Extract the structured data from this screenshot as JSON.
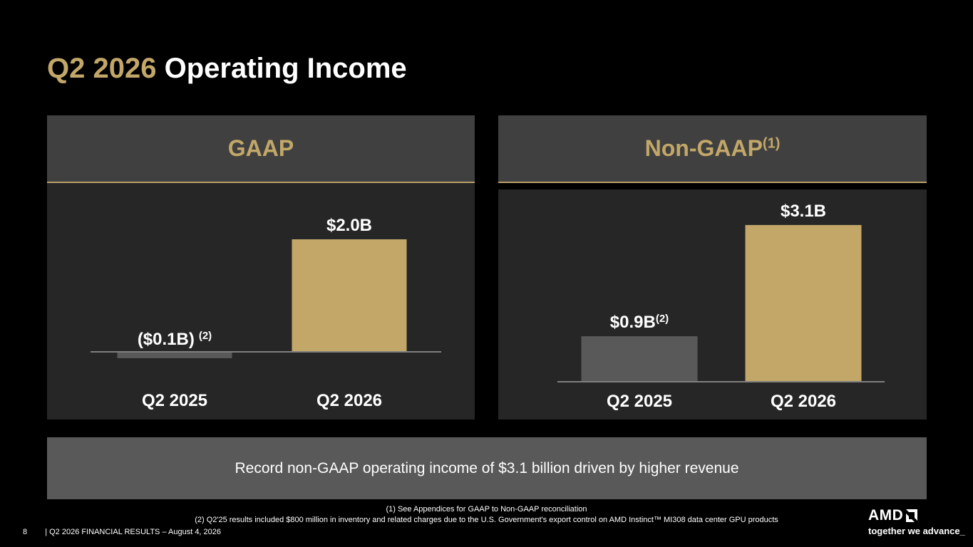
{
  "title": {
    "highlight": "Q2 2026",
    "main": "Operating Income"
  },
  "panels": {
    "gaap": {
      "header": "GAAP"
    },
    "nongaap": {
      "header": "Non-GAAP",
      "header_sup": "(1)"
    }
  },
  "chart_data": [
    {
      "type": "bar",
      "title": "GAAP",
      "categories": [
        "Q2 2025",
        "Q2 2026"
      ],
      "values": [
        -0.1,
        2.0
      ],
      "unit": "$B",
      "data_labels": [
        {
          "text": "($0.1B)",
          "sup": "(2)"
        },
        {
          "text": "$2.0B",
          "sup": ""
        }
      ],
      "colors": [
        "#595959",
        "#c2a768"
      ],
      "ylim": [
        -0.1,
        2.0
      ]
    },
    {
      "type": "bar",
      "title": "Non-GAAP",
      "categories": [
        "Q2 2025",
        "Q2 2026"
      ],
      "values": [
        0.9,
        3.1
      ],
      "unit": "$B",
      "data_labels": [
        {
          "text": "$0.9B",
          "sup": "(2)"
        },
        {
          "text": "$3.1B",
          "sup": ""
        }
      ],
      "colors": [
        "#595959",
        "#c2a768"
      ],
      "ylim": [
        0,
        3.1
      ]
    }
  ],
  "summary": "Record non-GAAP operating income of $3.1 billion driven by higher revenue",
  "footnotes": [
    "(1) See Appendices for GAAP to Non-GAAP reconciliation",
    "(2) Q2'25 results included $800 million in inventory and related charges due to the U.S. Government's export control on AMD Instinct™ MI308 data center GPU products"
  ],
  "footer": {
    "page": "8",
    "separator": "|",
    "text": "Q2 2026 FINANCIAL RESULTS – August 4, 2026"
  },
  "logo": {
    "brand": "AMD",
    "tagline": "together we advance_"
  },
  "colors": {
    "accent": "#c2a768",
    "panel_header": "#404040",
    "panel_body": "#262626",
    "bar_gray": "#595959",
    "summary_bg": "#595959"
  }
}
